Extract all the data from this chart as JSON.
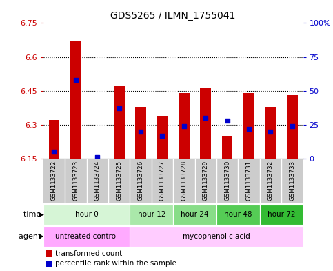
{
  "title": "GDS5265 / ILMN_1755041",
  "samples": [
    "GSM1133722",
    "GSM1133723",
    "GSM1133724",
    "GSM1133725",
    "GSM1133726",
    "GSM1133727",
    "GSM1133728",
    "GSM1133729",
    "GSM1133730",
    "GSM1133731",
    "GSM1133732",
    "GSM1133733"
  ],
  "bar_values": [
    6.32,
    6.67,
    6.15,
    6.47,
    6.38,
    6.34,
    6.44,
    6.46,
    6.25,
    6.44,
    6.38,
    6.43
  ],
  "percentile_values": [
    5,
    58,
    1,
    37,
    20,
    17,
    24,
    30,
    28,
    22,
    20,
    24
  ],
  "ymin": 6.15,
  "ymax": 6.75,
  "yticks": [
    6.15,
    6.3,
    6.45,
    6.6,
    6.75
  ],
  "ytick_labels": [
    "6.15",
    "6.3",
    "6.45",
    "6.6",
    "6.75"
  ],
  "right_yticks": [
    0,
    25,
    50,
    75,
    100
  ],
  "right_ytick_labels": [
    "0",
    "25",
    "50",
    "75",
    "100%"
  ],
  "bar_color": "#cc0000",
  "dot_color": "#0000cc",
  "base_value": 6.15,
  "time_groups": [
    {
      "label": "hour 0",
      "start": 0,
      "end": 3,
      "color": "#d6f5d6"
    },
    {
      "label": "hour 12",
      "start": 4,
      "end": 5,
      "color": "#aae8aa"
    },
    {
      "label": "hour 24",
      "start": 6,
      "end": 7,
      "color": "#88dd88"
    },
    {
      "label": "hour 48",
      "start": 8,
      "end": 9,
      "color": "#55cc55"
    },
    {
      "label": "hour 72",
      "start": 10,
      "end": 11,
      "color": "#33bb33"
    }
  ],
  "agent_groups": [
    {
      "label": "untreated control",
      "start": 0,
      "end": 3,
      "color": "#ffaaff"
    },
    {
      "label": "mycophenolic acid",
      "start": 4,
      "end": 11,
      "color": "#ffccff"
    }
  ],
  "legend_bar_label": "transformed count",
  "legend_dot_label": "percentile rank within the sample",
  "xlabel_time": "time",
  "xlabel_agent": "agent",
  "left_tick_color": "#cc0000",
  "right_tick_color": "#0000cc",
  "sample_bg_color": "#cccccc",
  "grid_color": "#555555"
}
